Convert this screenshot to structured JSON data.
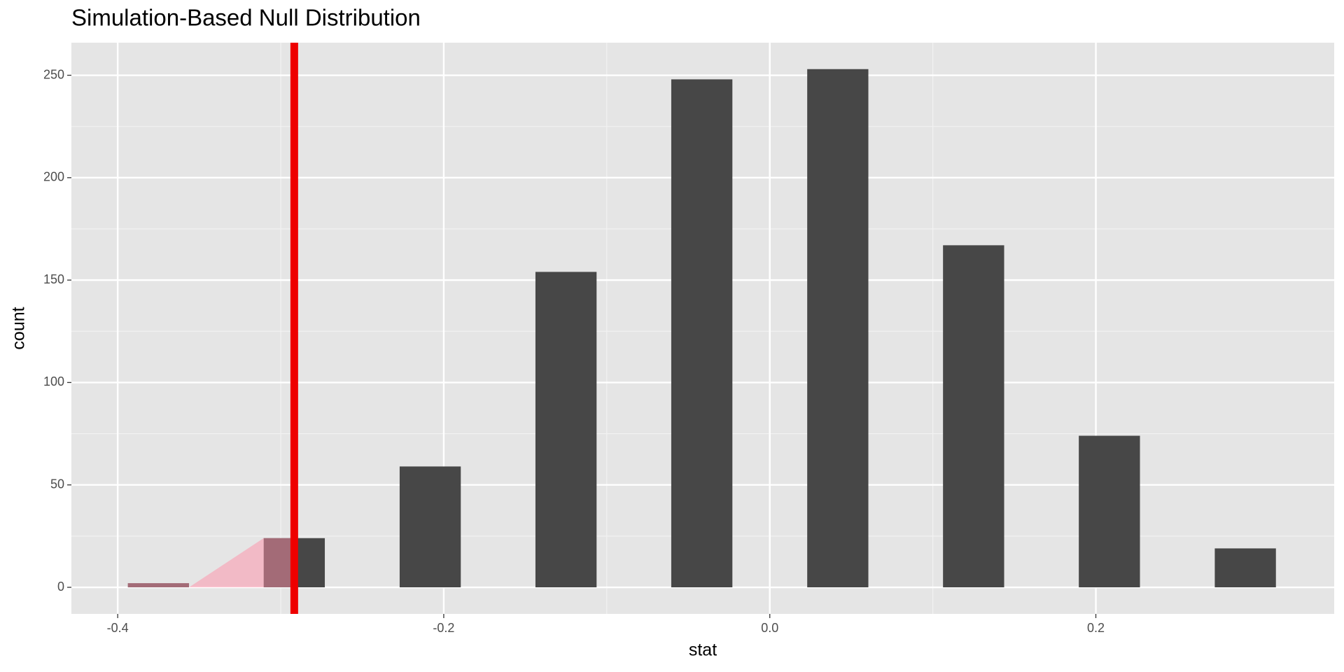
{
  "chart_data": {
    "type": "histogram",
    "title": "Simulation-Based Null Distribution",
    "x_label": "stat",
    "y_label": "count",
    "x": [
      -0.375,
      -0.2917,
      -0.2083,
      -0.125,
      -0.0417,
      0.0417,
      0.125,
      0.2083,
      0.2917
    ],
    "values": [
      2,
      24,
      59,
      154,
      248,
      253,
      167,
      74,
      19
    ],
    "color": "#474747",
    "observed_stat": -0.2917,
    "observed_color": "#ee0000",
    "shade_color": "#ff8fa8",
    "xlim": [
      -0.4284,
      0.3462
    ],
    "ylim": [
      -12.98,
      265.9
    ],
    "xticks": [
      -0.4,
      -0.2,
      {
        "value": 0,
        "label": "0.0"
      },
      0.2
    ],
    "yticks": [
      0,
      50,
      100,
      150,
      200,
      250
    ],
    "grid": true
  }
}
